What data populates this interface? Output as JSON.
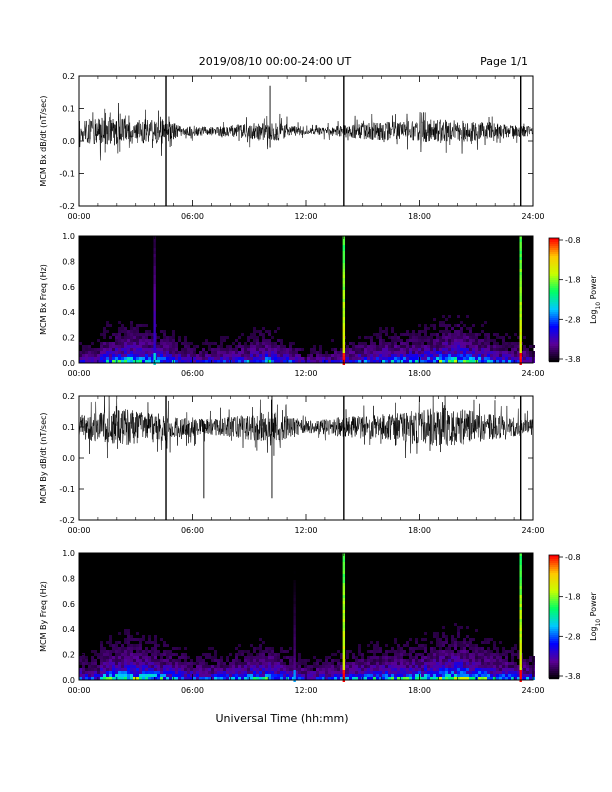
{
  "header": {
    "title": "2019/08/10  00:00-24:00 UT",
    "page": "Page 1/1"
  },
  "footer": {
    "xlabel": "Universal Time (hh:mm)"
  },
  "colors": {
    "background": "#ffffff",
    "line": "#000000",
    "spectrogram_background": "#000000",
    "colorscale": [
      "#000000",
      "#5a0096",
      "#0000ff",
      "#00c8ff",
      "#00ff64",
      "#c8ff00",
      "#ffc800",
      "#ff0000"
    ]
  },
  "chart_data": [
    {
      "type": "line",
      "ylabel": "MCM Bx dB/dt (nT/sec)",
      "xlim": [
        0,
        24
      ],
      "xticks": [
        "00:00",
        "06:00",
        "12:00",
        "18:00",
        "24:00"
      ],
      "ylim": [
        -0.2,
        0.2
      ],
      "yticks": [
        "-0.2",
        "-0.1",
        "0.0",
        "0.1",
        "0.2"
      ],
      "baseline": 0.03,
      "noise_envelope": [
        {
          "x": 0,
          "amp": 0.045
        },
        {
          "x": 1.5,
          "amp": 0.06
        },
        {
          "x": 2.5,
          "amp": 0.055
        },
        {
          "x": 3.5,
          "amp": 0.05
        },
        {
          "x": 4.5,
          "amp": 0.05
        },
        {
          "x": 5.5,
          "amp": 0.02
        },
        {
          "x": 7,
          "amp": 0.018
        },
        {
          "x": 9.5,
          "amp": 0.035
        },
        {
          "x": 10.5,
          "amp": 0.04
        },
        {
          "x": 12,
          "amp": 0.012
        },
        {
          "x": 13.5,
          "amp": 0.02
        },
        {
          "x": 15,
          "amp": 0.035
        },
        {
          "x": 17,
          "amp": 0.04
        },
        {
          "x": 19,
          "amp": 0.05
        },
        {
          "x": 21,
          "amp": 0.04
        },
        {
          "x": 23,
          "amp": 0.025
        },
        {
          "x": 24,
          "amp": 0.02
        }
      ],
      "spikes": [
        {
          "x": 4.6,
          "y_min": -0.2,
          "y_max": 0.2
        },
        {
          "x": 14.0,
          "y_min": -0.2,
          "y_max": 0.2
        },
        {
          "x": 23.35,
          "y_min": -0.2,
          "y_max": 0.2
        },
        {
          "x": 10.1,
          "y_min": -0.02,
          "y_max": 0.17
        }
      ]
    },
    {
      "type": "heatmap",
      "ylabel": "MCM Bx Freq (Hz)",
      "xlim": [
        0,
        24
      ],
      "xticks": [
        "00:00",
        "06:00",
        "12:00",
        "18:00",
        "24:00"
      ],
      "ylim": [
        0.0,
        1.0
      ],
      "yticks": [
        "0.0",
        "0.2",
        "0.4",
        "0.6",
        "0.8",
        "1.0"
      ],
      "colorbar": {
        "label": "Log10 Power",
        "label_base": "Log",
        "label_sub": "10",
        "label_rest": " Power",
        "min": -3.8,
        "max": -0.8,
        "ticks": [
          "-0.8",
          "-1.8",
          "-2.8",
          "-3.8"
        ]
      },
      "activity": [
        {
          "x": 1,
          "level": 0.5
        },
        {
          "x": 2.5,
          "level": 0.7
        },
        {
          "x": 4,
          "level": 0.6
        },
        {
          "x": 6,
          "level": 0.3
        },
        {
          "x": 8,
          "level": 0.35
        },
        {
          "x": 10,
          "level": 0.55
        },
        {
          "x": 12,
          "level": 0.2
        },
        {
          "x": 14,
          "level": 0.35
        },
        {
          "x": 16,
          "level": 0.5
        },
        {
          "x": 18,
          "level": 0.55
        },
        {
          "x": 20,
          "level": 0.8
        },
        {
          "x": 22,
          "level": 0.45
        },
        {
          "x": 24,
          "level": 0.3
        }
      ],
      "bright_columns": [
        {
          "x": 4.0,
          "power": -3.0
        },
        {
          "x": 14.0,
          "power": -1.2
        },
        {
          "x": 23.35,
          "power": -1.2
        }
      ],
      "patches": [
        {
          "x": 20.0,
          "f_max": 0.3,
          "power": -2.6
        },
        {
          "x": 10.0,
          "f_max": 0.35,
          "power": -3.2
        },
        {
          "x": 2.4,
          "f_max": 0.6,
          "power": -3.4
        }
      ]
    },
    {
      "type": "line",
      "ylabel": "MCM By dB/dt (nT/sec)",
      "xlim": [
        0,
        24
      ],
      "xticks": [
        "00:00",
        "06:00",
        "12:00",
        "18:00",
        "24:00"
      ],
      "ylim": [
        -0.2,
        0.2
      ],
      "yticks": [
        "-0.2",
        "-0.1",
        "0.0",
        "0.1",
        "0.2"
      ],
      "baseline": 0.1,
      "noise_envelope": [
        {
          "x": 0,
          "amp": 0.05
        },
        {
          "x": 1.5,
          "amp": 0.07
        },
        {
          "x": 2.5,
          "amp": 0.08
        },
        {
          "x": 3.5,
          "amp": 0.06
        },
        {
          "x": 4.5,
          "amp": 0.06
        },
        {
          "x": 5.5,
          "amp": 0.04
        },
        {
          "x": 7,
          "amp": 0.035
        },
        {
          "x": 9.5,
          "amp": 0.06
        },
        {
          "x": 10.5,
          "amp": 0.07
        },
        {
          "x": 12,
          "amp": 0.025
        },
        {
          "x": 13.5,
          "amp": 0.04
        },
        {
          "x": 15,
          "amp": 0.05
        },
        {
          "x": 17,
          "amp": 0.06
        },
        {
          "x": 19,
          "amp": 0.085
        },
        {
          "x": 21,
          "amp": 0.07
        },
        {
          "x": 23,
          "amp": 0.04
        },
        {
          "x": 24,
          "amp": 0.035
        }
      ],
      "spikes": [
        {
          "x": 4.6,
          "y_min": -0.2,
          "y_max": 0.2
        },
        {
          "x": 14.0,
          "y_min": -0.2,
          "y_max": 0.2
        },
        {
          "x": 23.35,
          "y_min": -0.2,
          "y_max": 0.2
        },
        {
          "x": 6.6,
          "y_min": -0.13,
          "y_max": 0.12
        },
        {
          "x": 10.2,
          "y_min": -0.13,
          "y_max": 0.2
        }
      ]
    },
    {
      "type": "heatmap",
      "ylabel": "MCM By Freq (Hz)",
      "xlim": [
        0,
        24
      ],
      "xticks": [
        "00:00",
        "06:00",
        "12:00",
        "18:00",
        "24:00"
      ],
      "ylim": [
        0.0,
        1.0
      ],
      "yticks": [
        "0.0",
        "0.2",
        "0.4",
        "0.6",
        "0.8",
        "1.0"
      ],
      "colorbar": {
        "label": "Log10 Power",
        "label_base": "Log",
        "label_sub": "10",
        "label_rest": " Power",
        "min": -3.8,
        "max": -0.8,
        "ticks": [
          "-0.8",
          "-1.8",
          "-2.8",
          "-3.8"
        ]
      },
      "activity": [
        {
          "x": 1,
          "level": 0.6
        },
        {
          "x": 2.5,
          "level": 0.8
        },
        {
          "x": 4,
          "level": 0.65
        },
        {
          "x": 6,
          "level": 0.4
        },
        {
          "x": 8,
          "level": 0.45
        },
        {
          "x": 10,
          "level": 0.65
        },
        {
          "x": 12,
          "level": 0.3
        },
        {
          "x": 14,
          "level": 0.45
        },
        {
          "x": 16,
          "level": 0.6
        },
        {
          "x": 18,
          "level": 0.65
        },
        {
          "x": 20,
          "level": 0.9
        },
        {
          "x": 22,
          "level": 0.55
        },
        {
          "x": 24,
          "level": 0.4
        }
      ],
      "bright_columns": [
        {
          "x": 11.4,
          "power": -3.3
        },
        {
          "x": 14.0,
          "power": -1.2
        },
        {
          "x": 23.35,
          "power": -1.2
        }
      ],
      "patches": [
        {
          "x": 20.0,
          "f_max": 0.25,
          "power": -2.5
        },
        {
          "x": 10.0,
          "f_max": 0.35,
          "power": -3.0
        },
        {
          "x": 2.5,
          "f_max": 0.7,
          "power": -3.3
        },
        {
          "x": 4.0,
          "f_max": 0.8,
          "power": -3.4
        }
      ]
    }
  ]
}
